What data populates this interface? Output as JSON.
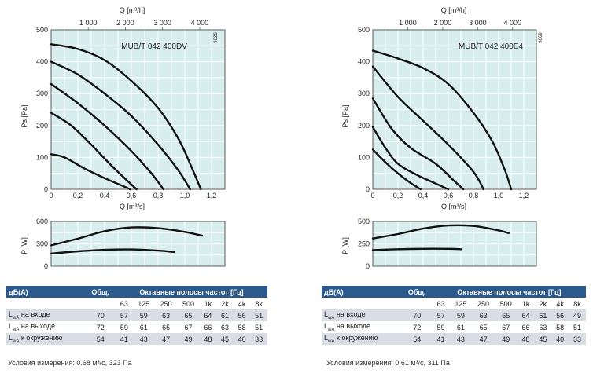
{
  "charts": [
    {
      "pressure_plot": {
        "model_label": "MUB/T 042 400DV",
        "code": "9826",
        "top_axis_label": "Q [m³/h]",
        "top_ticks": [
          "1 000",
          "2 000",
          "3 000",
          "4 000"
        ],
        "bottom_axis_label": "Q [m³/s]",
        "bottom_ticks": [
          "0",
          "0,2",
          "0,4",
          "0,6",
          "0,8",
          "1,0",
          "1,2"
        ],
        "y_axis_label": "Ps [Pa]",
        "y_ticks": [
          "0",
          "100",
          "200",
          "300",
          "400",
          "500"
        ]
      },
      "power_plot": {
        "y_axis_label": "P [W]",
        "y_ticks": [
          "0",
          "300",
          "600"
        ]
      },
      "table": {
        "col_dba": "дБ(A)",
        "col_total": "Общ.",
        "col_octave": "Октавные полосы частот [Гц]",
        "freqs": [
          "63",
          "125",
          "250",
          "500",
          "1k",
          "2k",
          "4k",
          "8k"
        ],
        "rows": [
          {
            "label": "на входе",
            "total": "70",
            "vals": [
              "57",
              "59",
              "63",
              "65",
              "64",
              "61",
              "56",
              "51"
            ]
          },
          {
            "label": "на выходе",
            "total": "72",
            "vals": [
              "59",
              "61",
              "65",
              "67",
              "66",
              "63",
              "58",
              "51"
            ]
          },
          {
            "label": "к окружению",
            "total": "54",
            "vals": [
              "41",
              "43",
              "47",
              "49",
              "48",
              "45",
              "40",
              "33"
            ]
          }
        ]
      },
      "conditions": "Условия измерения: 0.68 м³/с, 323 Па"
    },
    {
      "pressure_plot": {
        "model_label": "MUB/T 042 400E4",
        "code": "9869",
        "top_axis_label": "Q [m³/h]",
        "top_ticks": [
          "1 000",
          "2 000",
          "3 000",
          "4 000"
        ],
        "bottom_axis_label": "Q [m³/s]",
        "bottom_ticks": [
          "0",
          "0,2",
          "0,4",
          "0,6",
          "0,8",
          "1,0",
          "1,2"
        ],
        "y_axis_label": "Ps [Pa]",
        "y_ticks": [
          "0",
          "100",
          "200",
          "300",
          "400",
          "500"
        ]
      },
      "power_plot": {
        "y_axis_label": "P [W]",
        "y_ticks": [
          "0",
          "250",
          "500"
        ]
      },
      "table": {
        "col_dba": "дБ(A)",
        "col_total": "Общ.",
        "col_octave": "Октавные полосы частот [Гц]",
        "freqs": [
          "63",
          "125",
          "250",
          "500",
          "1k",
          "2k",
          "4k",
          "8k"
        ],
        "rows": [
          {
            "label": "на входе",
            "total": "70",
            "vals": [
              "57",
              "59",
              "63",
              "65",
              "64",
              "61",
              "56",
              "49"
            ]
          },
          {
            "label": "на выходе",
            "total": "72",
            "vals": [
              "59",
              "61",
              "65",
              "67",
              "66",
              "63",
              "58",
              "51"
            ]
          },
          {
            "label": "к окружению",
            "total": "54",
            "vals": [
              "41",
              "43",
              "47",
              "49",
              "48",
              "45",
              "40",
              "33"
            ]
          }
        ]
      },
      "conditions": "Условия измерения: 0.61 м³/с, 311 Па"
    }
  ],
  "chart_data": [
    {
      "type": "line",
      "xlabel": "Q [m³/s]",
      "ylabel": "Ps [Pa]",
      "xlim": [
        0,
        1.3
      ],
      "ylim": [
        0,
        500
      ],
      "series": [
        {
          "x": [
            0,
            0.2,
            0.4,
            0.6,
            0.8,
            0.95,
            1.05,
            1.12
          ],
          "y": [
            455,
            440,
            405,
            340,
            255,
            160,
            70,
            0
          ]
        },
        {
          "x": [
            0,
            0.2,
            0.4,
            0.6,
            0.8,
            0.95,
            1.04
          ],
          "y": [
            400,
            360,
            300,
            230,
            140,
            60,
            0
          ]
        },
        {
          "x": [
            0,
            0.2,
            0.4,
            0.6,
            0.75,
            0.84
          ],
          "y": [
            330,
            270,
            200,
            120,
            50,
            0
          ]
        },
        {
          "x": [
            0,
            0.15,
            0.3,
            0.45,
            0.6,
            0.64
          ],
          "y": [
            240,
            200,
            140,
            75,
            15,
            0
          ]
        },
        {
          "x": [
            0,
            0.1,
            0.25,
            0.4,
            0.55,
            0.59
          ],
          "y": [
            110,
            100,
            65,
            35,
            8,
            0
          ]
        }
      ]
    },
    {
      "type": "line",
      "ylabel": "P [W]",
      "xlim": [
        0,
        1.3
      ],
      "ylim": [
        0,
        600
      ],
      "series": [
        {
          "x": [
            0,
            0.2,
            0.4,
            0.6,
            0.8,
            1.0,
            1.13
          ],
          "y": [
            280,
            370,
            470,
            520,
            510,
            460,
            410
          ]
        },
        {
          "x": [
            0,
            0.2,
            0.4,
            0.6,
            0.8,
            0.92
          ],
          "y": [
            170,
            200,
            220,
            225,
            210,
            190
          ]
        }
      ]
    },
    {
      "type": "line",
      "xlabel": "Q [m³/s]",
      "ylabel": "Ps [Pa]",
      "xlim": [
        0,
        1.3
      ],
      "ylim": [
        0,
        500
      ],
      "series": [
        {
          "x": [
            0,
            0.2,
            0.4,
            0.6,
            0.8,
            0.95,
            1.05,
            1.1
          ],
          "y": [
            435,
            410,
            380,
            330,
            240,
            150,
            60,
            0
          ]
        },
        {
          "x": [
            0,
            0.2,
            0.4,
            0.6,
            0.8,
            0.88
          ],
          "y": [
            385,
            290,
            215,
            140,
            55,
            0
          ]
        },
        {
          "x": [
            0,
            0.15,
            0.3,
            0.5,
            0.65,
            0.72
          ],
          "y": [
            285,
            190,
            130,
            80,
            25,
            0
          ]
        },
        {
          "x": [
            0,
            0.1,
            0.2,
            0.35,
            0.5,
            0.6
          ],
          "y": [
            195,
            130,
            80,
            45,
            18,
            0
          ]
        },
        {
          "x": [
            0,
            0.1,
            0.2,
            0.3,
            0.38
          ],
          "y": [
            125,
            85,
            50,
            20,
            0
          ]
        }
      ]
    },
    {
      "type": "line",
      "ylabel": "P [W]",
      "xlim": [
        0,
        1.3
      ],
      "ylim": [
        0,
        500
      ],
      "series": [
        {
          "x": [
            0,
            0.2,
            0.4,
            0.6,
            0.8,
            1.0,
            1.08
          ],
          "y": [
            310,
            360,
            420,
            455,
            450,
            400,
            370
          ]
        },
        {
          "x": [
            0,
            0.2,
            0.4,
            0.6,
            0.7
          ],
          "y": [
            180,
            190,
            195,
            195,
            190
          ]
        }
      ]
    }
  ]
}
